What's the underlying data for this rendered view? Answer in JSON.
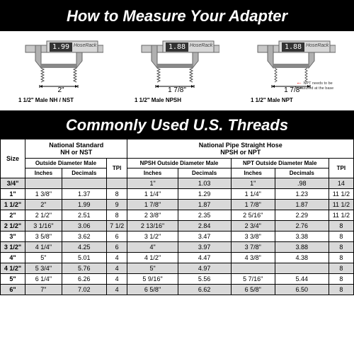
{
  "title1": "How to Measure Your Adapter",
  "title2": "Commonly Used U.S. Threads",
  "diagrams": [
    {
      "reading": "1.99",
      "brand": "HoseRack",
      "dim": "2\"",
      "label": "1 1/2\" Male NH / NST",
      "npt": false
    },
    {
      "reading": "1.88",
      "brand": "HoseRack",
      "dim": "1 7/8\"",
      "label": "1 1/2\" Male NPSH",
      "npt": false
    },
    {
      "reading": "1.88",
      "brand": "HoseRack",
      "dim": "1 7/8\"",
      "label": "1 1/2\" Male NPT",
      "npt": true
    }
  ],
  "npt_note": "NPT needs to be measured at the base",
  "table": {
    "group_heads": {
      "size": "Size",
      "ns": "National Standard\nNH or NST",
      "npsh_npt": "National Pipe Straight Hose\nNPSH or NPT"
    },
    "sub_heads": {
      "od_male": "Outside Diameter Male",
      "tpi": "TPI",
      "npsh_od": "NPSH Outside Diameter Male",
      "npt_od": "NPT Outside Diameter Male"
    },
    "sub_heads2": {
      "in": "Inches",
      "dec": "Decimals"
    },
    "rows": [
      {
        "size": "3/4\"",
        "ns_in": "",
        "ns_dec": "",
        "ns_tpi": "",
        "npsh_in": "1\"",
        "npsh_dec": "1.03",
        "npt_in": "1\"",
        "npt_dec": ".98",
        "tpi2": "14",
        "shade": true
      },
      {
        "size": "1\"",
        "ns_in": "1 3/8\"",
        "ns_dec": "1.37",
        "ns_tpi": "8",
        "npsh_in": "1 1/4\"",
        "npsh_dec": "1.29",
        "npt_in": "1 1/4\"",
        "npt_dec": "1.23",
        "tpi2": "11 1/2",
        "shade": false
      },
      {
        "size": "1 1/2\"",
        "ns_in": "2\"",
        "ns_dec": "1.99",
        "ns_tpi": "9",
        "npsh_in": "1 7/8\"",
        "npsh_dec": "1.87",
        "npt_in": "1 7/8\"",
        "npt_dec": "1.87",
        "tpi2": "11 1/2",
        "shade": true
      },
      {
        "size": "2\"",
        "ns_in": "2 1/2\"",
        "ns_dec": "2.51",
        "ns_tpi": "8",
        "npsh_in": "2 3/8\"",
        "npsh_dec": "2.35",
        "npt_in": "2 5/16\"",
        "npt_dec": "2.29",
        "tpi2": "11 1/2",
        "shade": false
      },
      {
        "size": "2 1/2\"",
        "ns_in": "3 1/16\"",
        "ns_dec": "3.06",
        "ns_tpi": "7 1/2",
        "npsh_in": "2 13/16\"",
        "npsh_dec": "2.84",
        "npt_in": "2 3/4\"",
        "npt_dec": "2.76",
        "tpi2": "8",
        "shade": true
      },
      {
        "size": "3\"",
        "ns_in": "3 5/8\"",
        "ns_dec": "3.62",
        "ns_tpi": "6",
        "npsh_in": "3 1/2\"",
        "npsh_dec": "3.47",
        "npt_in": "3 3/8\"",
        "npt_dec": "3.38",
        "tpi2": "8",
        "shade": false
      },
      {
        "size": "3 1/2\"",
        "ns_in": "4 1/4\"",
        "ns_dec": "4.25",
        "ns_tpi": "6",
        "npsh_in": "4\"",
        "npsh_dec": "3.97",
        "npt_in": "3 7/8\"",
        "npt_dec": "3.88",
        "tpi2": "8",
        "shade": true
      },
      {
        "size": "4\"",
        "ns_in": "5\"",
        "ns_dec": "5.01",
        "ns_tpi": "4",
        "npsh_in": "4 1/2\"",
        "npsh_dec": "4.47",
        "npt_in": "4 3/8\"",
        "npt_dec": "4.38",
        "tpi2": "8",
        "shade": false
      },
      {
        "size": "4 1/2\"",
        "ns_in": "5 3/4\"",
        "ns_dec": "5.76",
        "ns_tpi": "4",
        "npsh_in": "5\"",
        "npsh_dec": "4.97",
        "npt_in": "",
        "npt_dec": "",
        "tpi2": "8",
        "shade": true
      },
      {
        "size": "5\"",
        "ns_in": "6 1/4\"",
        "ns_dec": "6.26",
        "ns_tpi": "4",
        "npsh_in": "5 9/16\"",
        "npsh_dec": "5.56",
        "npt_in": "5 7/16\"",
        "npt_dec": "5.44",
        "tpi2": "8",
        "shade": false
      },
      {
        "size": "6\"",
        "ns_in": "7\"",
        "ns_dec": "7.02",
        "ns_tpi": "4",
        "npsh_in": "6 5/8\"",
        "npsh_dec": "6.62",
        "npt_in": "6 5/8\"",
        "npt_dec": "6.50",
        "tpi2": "8",
        "shade": true
      }
    ]
  },
  "style": {
    "bg_header": "#000000",
    "fg_header": "#ffffff",
    "shade": "#d9d9d9",
    "border": "#000000"
  }
}
